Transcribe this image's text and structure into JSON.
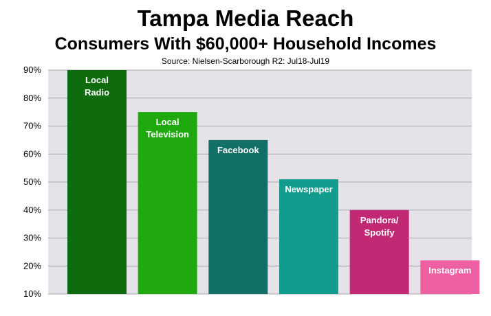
{
  "chart_data": {
    "type": "bar",
    "title": "Tampa Media Reach",
    "subtitle": "Consumers With $60,000+ Household Incomes",
    "source": "Source: Nielsen-Scarborough R2: Jul18-Jul19",
    "categories": [
      [
        "Local",
        "Radio"
      ],
      [
        "Local",
        "Television"
      ],
      [
        "Facebook"
      ],
      [
        "Newspaper"
      ],
      [
        "Pandora/",
        "Spotify"
      ],
      [
        "Instagram"
      ]
    ],
    "values": [
      90,
      75,
      65,
      51,
      40,
      22
    ],
    "colors": [
      "#0e6b0e",
      "#20a80f",
      "#127066",
      "#119c8e",
      "#c22873",
      "#ee5fa2"
    ],
    "ylim": [
      10,
      90
    ],
    "yticks": [
      "10%",
      "20%",
      "30%",
      "40%",
      "50%",
      "60%",
      "70%",
      "80%",
      "90%"
    ],
    "grid": true,
    "plot_background": "#e5e3e8"
  }
}
